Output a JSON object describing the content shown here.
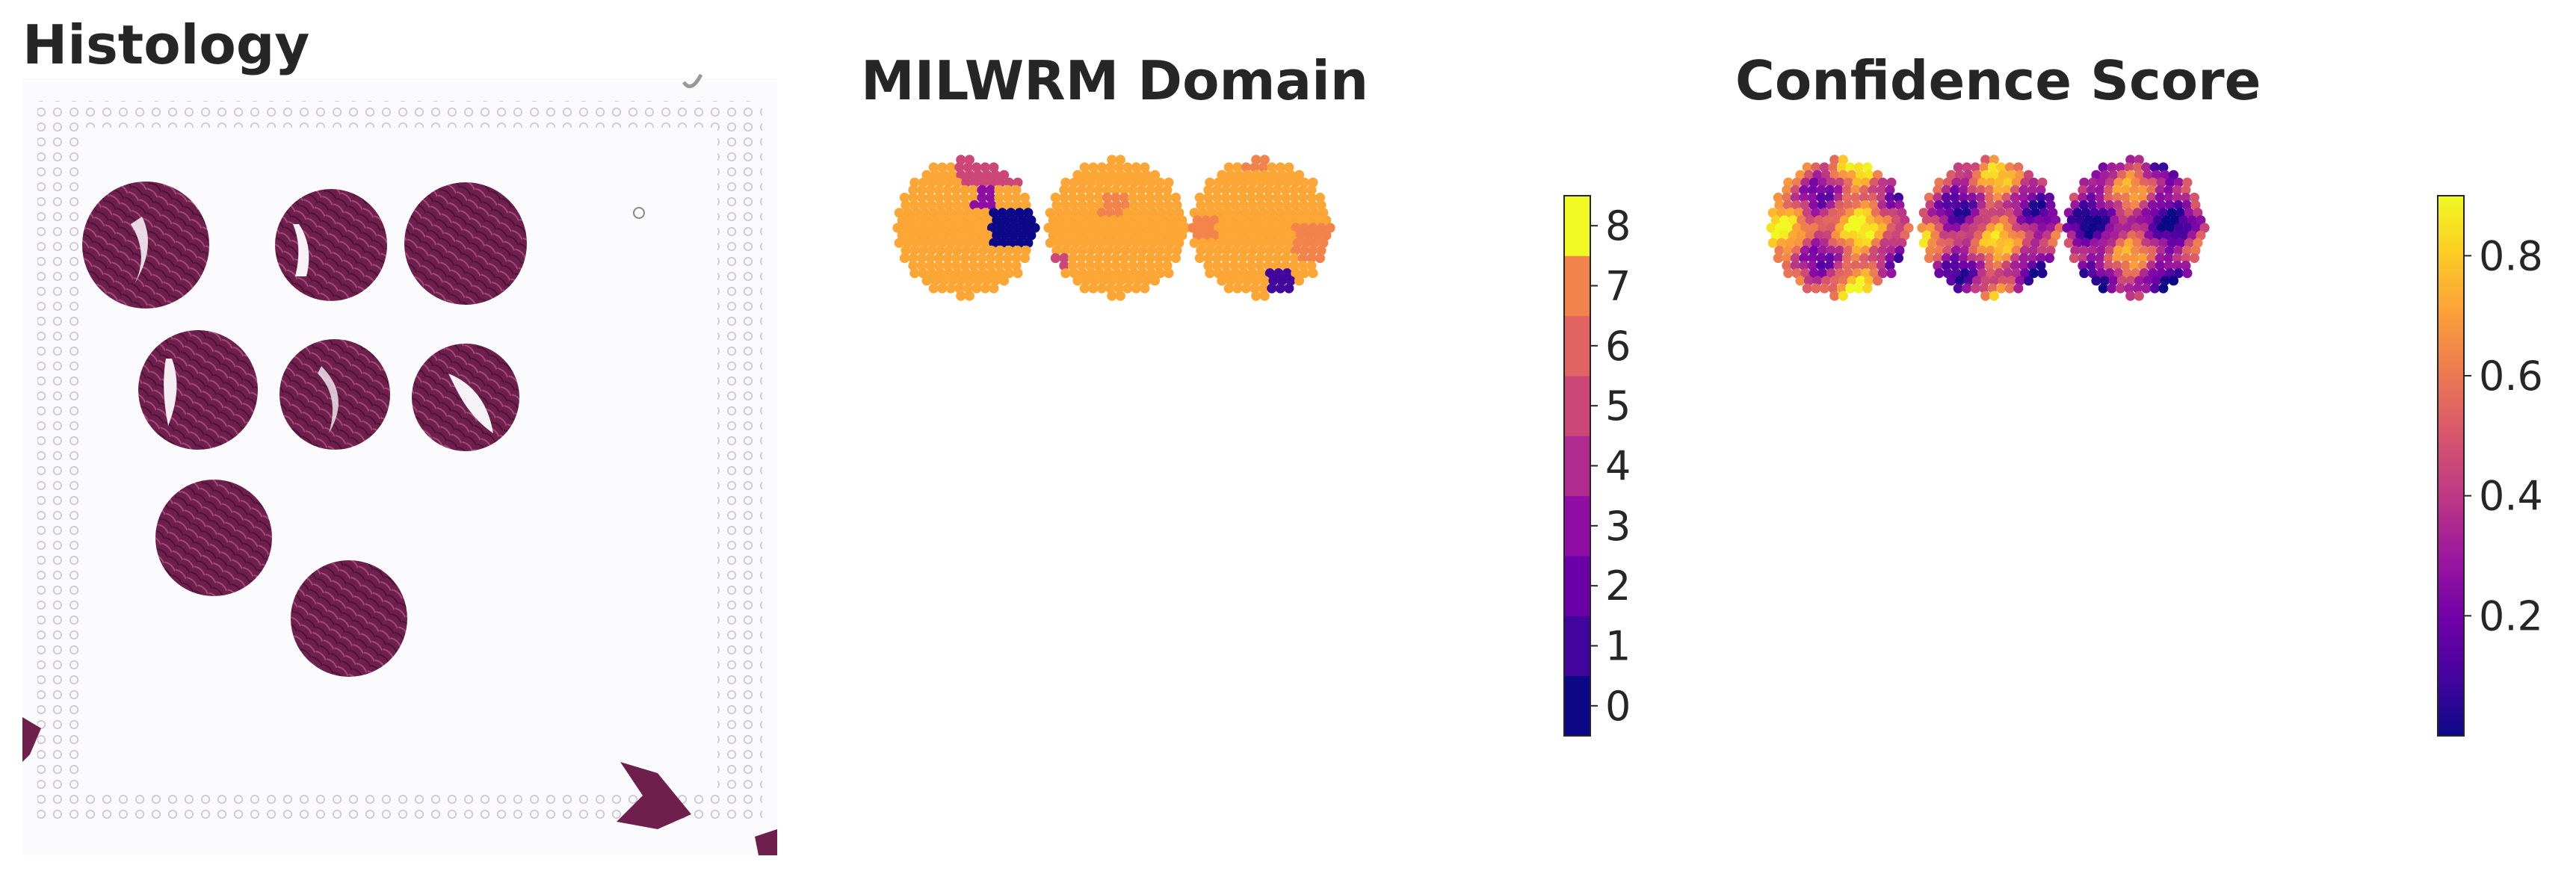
{
  "panels": {
    "histology": {
      "title": "Histology"
    },
    "domain": {
      "title": "MILWRM Domain"
    },
    "confidence": {
      "title": "Confidence Score"
    }
  },
  "colors": {
    "plasma_stops": [
      "#0d0887",
      "#46039f",
      "#7201a8",
      "#9c179e",
      "#bd3786",
      "#d8576b",
      "#ed7953",
      "#fb9f3a",
      "#fdca26",
      "#f0f921"
    ],
    "domain_palette": [
      "#0d0887",
      "#41049d",
      "#6a00a8",
      "#8f0da4",
      "#b12a90",
      "#cc4778",
      "#e16462",
      "#f2844b",
      "#fca636",
      "#f0f921"
    ],
    "tissue": "#6e1f4d",
    "tissue_light": "#e9d6e6",
    "background_spots": "#cdbfd9"
  },
  "chart_data": [
    {
      "type": "image",
      "title": "Histology",
      "description_free": true
    },
    {
      "type": "heatmap",
      "title": "MILWRM Domain",
      "colormap": "plasma (discrete)",
      "colorbar": {
        "ticks": [
          "0",
          "1",
          "2",
          "3",
          "4",
          "5",
          "6",
          "7",
          "8"
        ],
        "vmin": -0.5,
        "vmax": 8.5
      },
      "regions": [
        {
          "dominant_domain": 8,
          "minor_domains": [
            5,
            0,
            3
          ]
        },
        {
          "dominant_domain": 8,
          "minor_domains": [
            7,
            5
          ]
        },
        {
          "dominant_domain": 8,
          "minor_domains": [
            7,
            1
          ]
        }
      ]
    },
    {
      "type": "heatmap",
      "title": "Confidence Score",
      "colormap": "plasma",
      "colorbar": {
        "ticks": [
          "0.2",
          "0.4",
          "0.6",
          "0.8"
        ],
        "vmin": 0.0,
        "vmax": 0.9
      },
      "regions": [
        {
          "mean_score": 0.55
        },
        {
          "mean_score": 0.45
        },
        {
          "mean_score": 0.35
        }
      ]
    }
  ]
}
